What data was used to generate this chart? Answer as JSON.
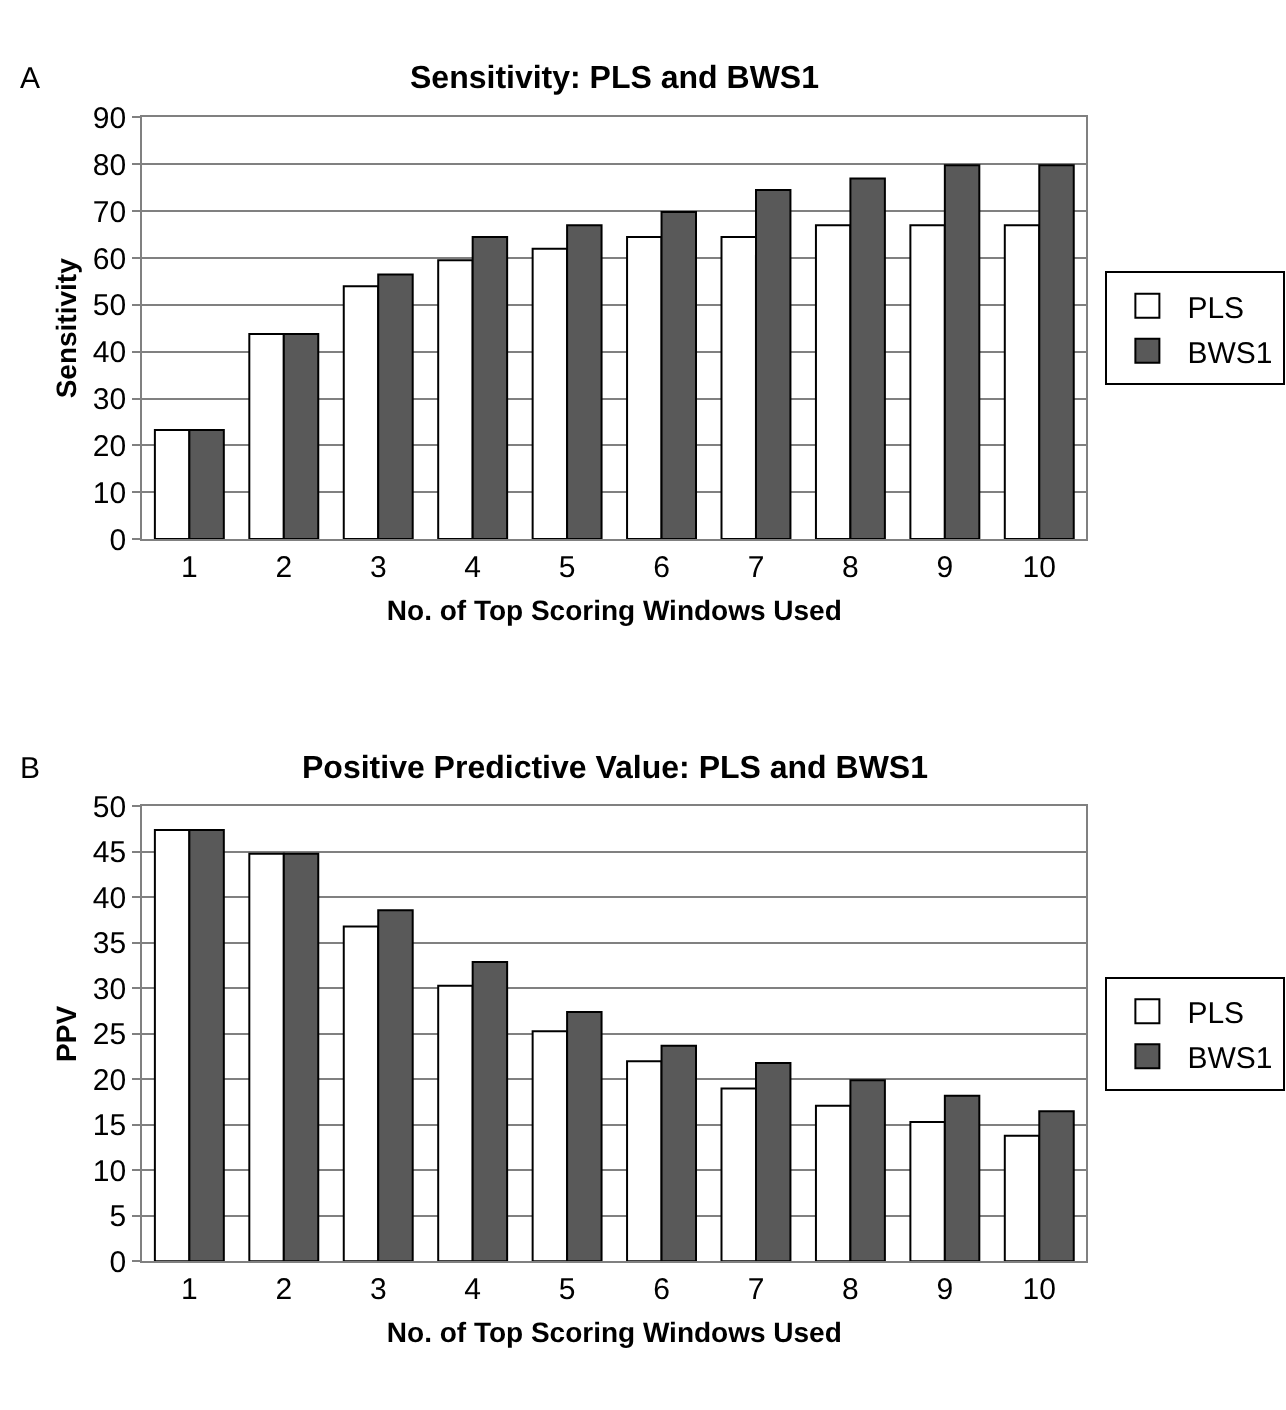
{
  "chart_data": [
    {
      "type": "bar",
      "title": "Sensitivity: PLS and BWS1",
      "xlabel": "No. of Top Scoring Windows Used",
      "ylabel": "Sensitivity",
      "annotations": [
        "A"
      ],
      "categories": [
        "1",
        "2",
        "3",
        "4",
        "5",
        "6",
        "7",
        "8",
        "9",
        "10"
      ],
      "series": [
        {
          "name": "PLS",
          "color": "#ffffff",
          "values": [
            23.3,
            43.8,
            54,
            59.5,
            62,
            64.5,
            64.5,
            67,
            67,
            67
          ]
        },
        {
          "name": "BWS1",
          "color": "#595959",
          "values": [
            23.3,
            43.8,
            56.5,
            64.5,
            67,
            69.8,
            74.5,
            77,
            79.8,
            79.8
          ]
        }
      ],
      "ylim": [
        0,
        90
      ],
      "yticks": [
        0,
        10,
        20,
        30,
        40,
        50,
        60,
        70,
        80,
        90
      ],
      "grid": "y",
      "legend": "right"
    },
    {
      "type": "bar",
      "title": "Positive Predictive Value: PLS and BWS1",
      "xlabel": "No. of Top Scoring Windows Used",
      "ylabel": "PPV",
      "annotations": [
        "B"
      ],
      "categories": [
        "1",
        "2",
        "3",
        "4",
        "5",
        "6",
        "7",
        "8",
        "9",
        "10"
      ],
      "series": [
        {
          "name": "PLS",
          "color": "#ffffff",
          "values": [
            47.4,
            44.8,
            36.8,
            30.3,
            25.3,
            22,
            19,
            17.1,
            15.3,
            13.8
          ]
        },
        {
          "name": "BWS1",
          "color": "#595959",
          "values": [
            47.4,
            44.8,
            38.6,
            32.9,
            27.4,
            23.7,
            21.8,
            19.9,
            18.2,
            16.5
          ]
        }
      ],
      "ylim": [
        0,
        50
      ],
      "yticks": [
        0,
        5,
        10,
        15,
        20,
        25,
        30,
        35,
        40,
        45,
        50
      ],
      "grid": "y",
      "legend": "right"
    }
  ]
}
